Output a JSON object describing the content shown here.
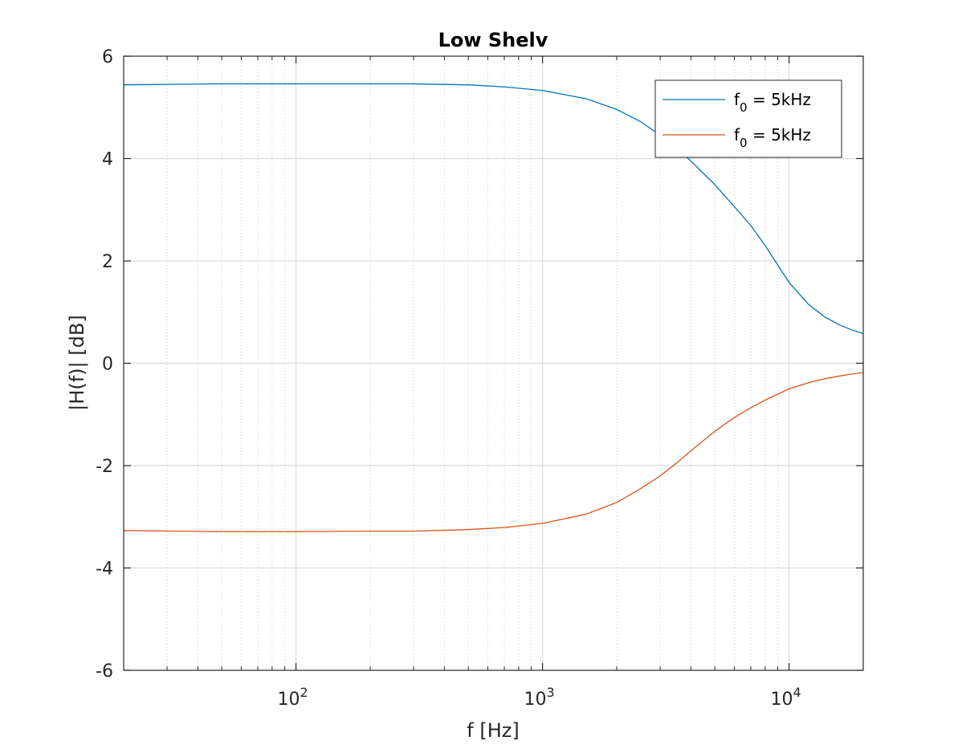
{
  "chart_data": {
    "type": "line",
    "title": "Low Shelv",
    "xlabel": "f [Hz]",
    "ylabel": "|H(f)| [dB]",
    "xscale": "log",
    "xlim": [
      20,
      20000
    ],
    "ylim": [
      -6,
      6
    ],
    "grid": true,
    "legend_location": "top-right",
    "y_ticks": [
      "6",
      "4",
      "2",
      "0",
      "-2",
      "-4",
      "-6"
    ],
    "x_ticks": [
      {
        "base": "10",
        "exp": "2",
        "value": 100
      },
      {
        "base": "10",
        "exp": "3",
        "value": 1000
      },
      {
        "base": "10",
        "exp": "4",
        "value": 10000
      }
    ],
    "series": [
      {
        "legend": {
          "text": "f",
          "sub": "0",
          "rest": " = 5kHz"
        },
        "color": "#0072BD",
        "x": [
          20,
          50,
          100,
          200,
          300,
          500,
          700,
          1000,
          1500,
          2000,
          2500,
          3000,
          3500,
          4000,
          5000,
          6000,
          7000,
          8000,
          10000,
          12000,
          14000,
          16000,
          18000,
          20000
        ],
        "y": [
          5.44,
          5.46,
          5.46,
          5.46,
          5.46,
          5.44,
          5.4,
          5.33,
          5.17,
          4.96,
          4.72,
          4.46,
          4.2,
          3.95,
          3.49,
          3.06,
          2.69,
          2.3,
          1.58,
          1.15,
          0.9,
          0.75,
          0.65,
          0.58
        ]
      },
      {
        "legend": {
          "text": "f",
          "sub": "0",
          "rest": " = 5kHz"
        },
        "color": "#D95319",
        "x": [
          20,
          50,
          100,
          200,
          300,
          500,
          700,
          1000,
          1500,
          2000,
          2500,
          3000,
          3500,
          4000,
          5000,
          6000,
          7000,
          8000,
          10000,
          12000,
          14000,
          16000,
          18000,
          20000
        ],
        "y": [
          -3.27,
          -3.29,
          -3.29,
          -3.28,
          -3.28,
          -3.25,
          -3.21,
          -3.13,
          -2.95,
          -2.72,
          -2.45,
          -2.2,
          -1.95,
          -1.71,
          -1.33,
          -1.06,
          -0.87,
          -0.72,
          -0.5,
          -0.38,
          -0.3,
          -0.25,
          -0.21,
          -0.18
        ]
      }
    ]
  }
}
